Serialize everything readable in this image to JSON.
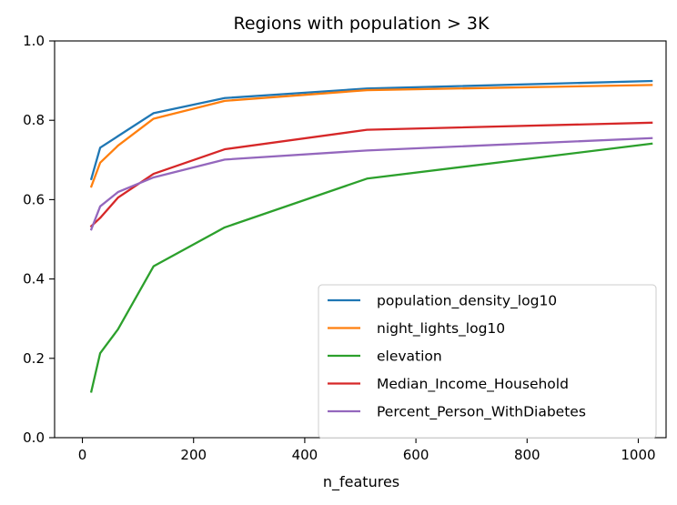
{
  "chart_data": {
    "type": "line",
    "title": "Regions with population > 3K",
    "xlabel": "n_features",
    "ylabel": "",
    "xlim": [
      -50,
      1050
    ],
    "ylim": [
      0.0,
      1.0
    ],
    "xticks": [
      0,
      200,
      400,
      600,
      800,
      1000
    ],
    "xtick_labels": [
      "0",
      "200",
      "400",
      "600",
      "800",
      "1000"
    ],
    "yticks": [
      0.0,
      0.2,
      0.4,
      0.6,
      0.8,
      1.0
    ],
    "ytick_labels": [
      "0.0",
      "0.2",
      "0.4",
      "0.6",
      "0.8",
      "1.0"
    ],
    "grid": false,
    "legend_position": "lower-right",
    "x": [
      16,
      32,
      64,
      128,
      256,
      512,
      1024
    ],
    "series": [
      {
        "name": "population_density_log10",
        "color": "#1f77b4",
        "values": [
          0.652,
          0.731,
          0.76,
          0.818,
          0.856,
          0.88,
          0.899
        ]
      },
      {
        "name": "night_lights_log10",
        "color": "#ff7f0e",
        "values": [
          0.633,
          0.693,
          0.736,
          0.804,
          0.849,
          0.876,
          0.889
        ]
      },
      {
        "name": "elevation",
        "color": "#2ca02c",
        "values": [
          0.116,
          0.213,
          0.273,
          0.432,
          0.53,
          0.653,
          0.741
        ]
      },
      {
        "name": "Median_Income_Household",
        "color": "#d62728",
        "values": [
          0.533,
          0.554,
          0.605,
          0.665,
          0.727,
          0.776,
          0.794
        ]
      },
      {
        "name": "Percent_Person_WithDiabetes",
        "color": "#9467bd",
        "values": [
          0.525,
          0.583,
          0.619,
          0.656,
          0.701,
          0.724,
          0.755
        ]
      }
    ]
  }
}
